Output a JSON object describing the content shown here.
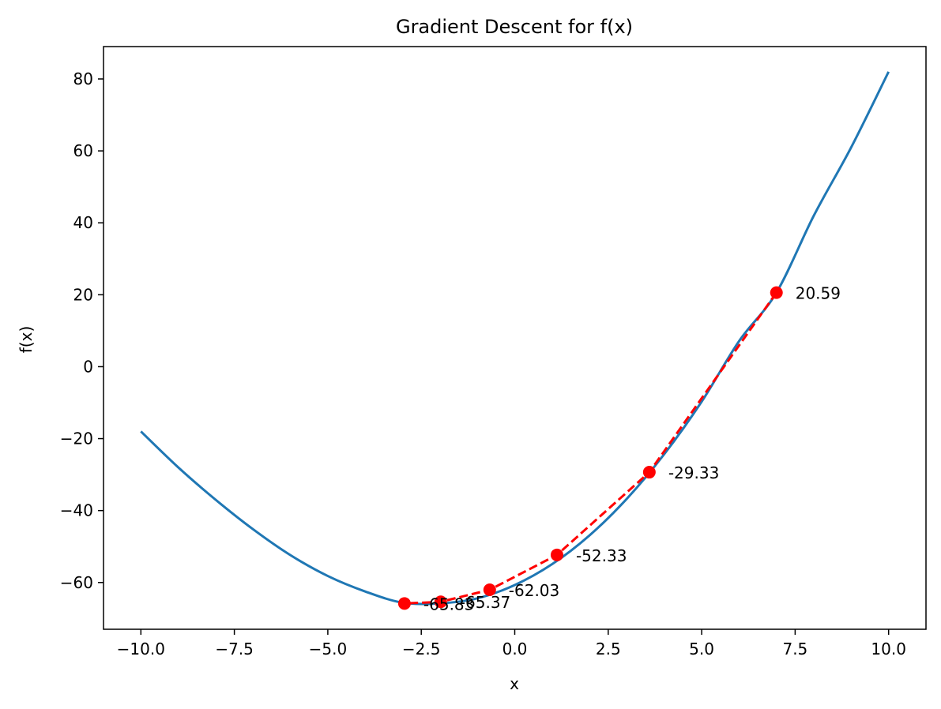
{
  "chart_data": {
    "type": "line",
    "title": "Gradient Descent for f(x)",
    "xlabel": "x",
    "ylabel": "f(x)",
    "xlim": [
      -11.0,
      11.0
    ],
    "ylim": [
      -73.0,
      89.0
    ],
    "grid": false,
    "x_ticks": [
      -10.0,
      -7.5,
      -5.0,
      -2.5,
      0.0,
      2.5,
      5.0,
      7.5,
      10.0
    ],
    "x_tick_labels": [
      "−10.0",
      "−7.5",
      "−5.0",
      "−2.5",
      "0.0",
      "2.5",
      "5.0",
      "7.5",
      "10.0"
    ],
    "y_ticks": [
      -60,
      -40,
      -20,
      0,
      20,
      40,
      60,
      80
    ],
    "y_tick_labels": [
      "−60",
      "−40",
      "−20",
      "0",
      "20",
      "40",
      "60",
      "80"
    ],
    "series": [
      {
        "style": "curve",
        "color": "#1f77b4",
        "x": [
          -10.0,
          -9.0,
          -8.0,
          -7.0,
          -6.0,
          -5.0,
          -4.0,
          -3.0,
          -2.0,
          -1.0,
          0.0,
          1.0,
          2.0,
          3.0,
          4.0,
          5.0,
          6.0,
          7.0,
          8.0,
          9.0,
          10.0
        ],
        "y": [
          -18.0,
          -28.0,
          -37.0,
          -45.2,
          -52.4,
          -58.2,
          -62.5,
          -65.6,
          -65.8,
          -64.4,
          -60.7,
          -54.9,
          -46.9,
          -36.7,
          -24.3,
          -9.7,
          7.1,
          20.6,
          42.0,
          61.0,
          82.0
        ]
      },
      {
        "style": "dashed-markers",
        "color": "#ff0000",
        "x": [
          7.0,
          3.6,
          1.13,
          -0.67,
          -1.98,
          -2.95
        ],
        "y": [
          20.59,
          -29.33,
          -52.33,
          -62.03,
          -65.37,
          -65.83
        ],
        "labels": [
          "20.59",
          "-29.33",
          "-52.33",
          "-62.03",
          "-65.37",
          "-65.83"
        ]
      }
    ]
  }
}
